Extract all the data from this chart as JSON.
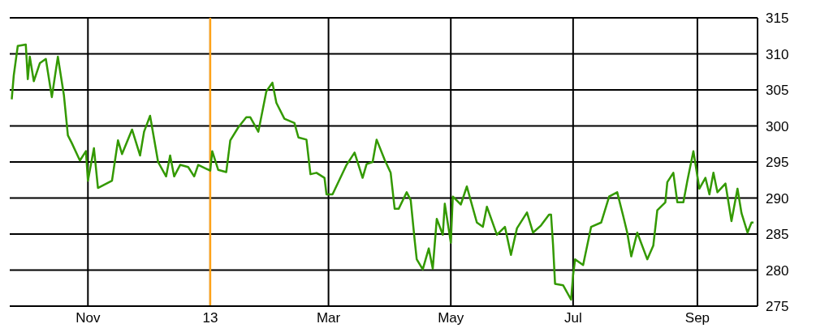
{
  "chart_data": {
    "type": "line",
    "x": [
      "2012-09-24",
      "2012-09-25",
      "2012-09-27",
      "2012-10-01",
      "2012-10-02",
      "2012-10-03",
      "2012-10-05",
      "2012-10-08",
      "2012-10-11",
      "2012-10-14",
      "2012-10-17",
      "2012-10-20",
      "2012-10-22",
      "2012-10-24",
      "2012-10-28",
      "2012-10-31",
      "2012-11-01",
      "2012-11-04",
      "2012-11-06",
      "2012-11-13",
      "2012-11-16",
      "2012-11-18",
      "2012-11-23",
      "2012-11-27",
      "2012-11-29",
      "2012-12-02",
      "2012-12-06",
      "2012-12-10",
      "2012-12-12",
      "2012-12-14",
      "2012-12-17",
      "2012-12-21",
      "2012-12-24",
      "2012-12-26",
      "2013-01-01",
      "2013-01-02",
      "2013-01-05",
      "2013-01-09",
      "2013-01-11",
      "2013-01-15",
      "2013-01-19",
      "2013-01-21",
      "2013-01-25",
      "2013-01-29",
      "2013-02-01",
      "2013-02-03",
      "2013-02-07",
      "2013-02-12",
      "2013-02-14",
      "2013-02-18",
      "2013-02-20",
      "2013-02-23",
      "2013-02-27",
      "2013-02-28",
      "2013-03-03",
      "2013-03-10",
      "2013-03-14",
      "2013-03-18",
      "2013-03-20",
      "2013-03-23",
      "2013-03-25",
      "2013-03-29",
      "2013-04-01",
      "2013-04-03",
      "2013-04-05",
      "2013-04-09",
      "2013-04-11",
      "2013-04-13",
      "2013-04-14",
      "2013-04-17",
      "2013-04-20",
      "2013-04-22",
      "2013-04-24",
      "2013-04-27",
      "2013-04-28",
      "2013-05-01",
      "2013-05-02",
      "2013-05-06",
      "2013-05-09",
      "2013-05-14",
      "2013-05-17",
      "2013-05-19",
      "2013-05-24",
      "2013-05-28",
      "2013-05-31",
      "2013-06-03",
      "2013-06-08",
      "2013-06-11",
      "2013-06-15",
      "2013-06-19",
      "2013-06-20",
      "2013-06-21",
      "2013-06-22",
      "2013-06-26",
      "2013-06-30",
      "2013-07-01",
      "2013-07-02",
      "2013-07-06",
      "2013-07-10",
      "2013-07-15",
      "2013-07-19",
      "2013-07-23",
      "2013-07-26",
      "2013-07-28",
      "2013-07-30",
      "2013-08-02",
      "2013-08-07",
      "2013-08-10",
      "2013-08-12",
      "2013-08-16",
      "2013-08-17",
      "2013-08-20",
      "2013-08-22",
      "2013-08-25",
      "2013-08-27",
      "2013-08-30",
      "2013-09-02",
      "2013-09-05",
      "2013-09-07",
      "2013-09-09",
      "2013-09-11",
      "2013-09-15",
      "2013-09-18",
      "2013-09-21",
      "2013-09-23",
      "2013-09-26",
      "2013-09-28",
      "2013-09-29"
    ],
    "series": [
      {
        "color": "#339900",
        "values": [
          303.7,
          307,
          311.1,
          311.3,
          306.5,
          309.6,
          306.2,
          308.7,
          309.3,
          304,
          309.6,
          304.3,
          298.7,
          297.6,
          295.2,
          296.5,
          292.4,
          296.9,
          291.4,
          292.4,
          298,
          296.1,
          299.5,
          295.9,
          299.2,
          301.4,
          295,
          293,
          295.9,
          293,
          294.6,
          294.3,
          293,
          294.6,
          293.8,
          296.5,
          293.9,
          293.6,
          298,
          299.8,
          301.2,
          301.2,
          299.2,
          304.8,
          306,
          303.2,
          301,
          300.4,
          298.4,
          298.1,
          293.3,
          293.5,
          292.8,
          290.5,
          290.5,
          294.6,
          296.3,
          292.8,
          294.7,
          295,
          298.1,
          295.3,
          293.5,
          288.5,
          288.5,
          290.8,
          289.7,
          284.1,
          281.5,
          280.1,
          283,
          280.2,
          287.1,
          284.9,
          289.2,
          283.8,
          290.2,
          289.1,
          291.6,
          286.6,
          286,
          288.8,
          284.9,
          286,
          282.1,
          285.8,
          288,
          285.2,
          286.2,
          287.7,
          287.7,
          283.5,
          278.1,
          277.9,
          275.9,
          279.3,
          281.5,
          280.7,
          286,
          286.6,
          290.2,
          290.8,
          287.5,
          285.2,
          281.9,
          285.2,
          281.5,
          283.4,
          288.3,
          289.4,
          292.2,
          293.5,
          289.4,
          289.4,
          292.4,
          296.5,
          291.3,
          292.8,
          290.5,
          293.5,
          290.8,
          292,
          286.8,
          291.3,
          287.9,
          285.2,
          286.6,
          286.6
        ]
      }
    ],
    "xlim": [
      "2012-09-23",
      "2013-10-01"
    ],
    "xticks": [
      {
        "value": "2012-11-01",
        "label": "Nov"
      },
      {
        "value": "2013-01-01",
        "label": "13"
      },
      {
        "value": "2013-03-01",
        "label": "Mar"
      },
      {
        "value": "2013-05-01",
        "label": "May"
      },
      {
        "value": "2013-07-01",
        "label": "Jul"
      },
      {
        "value": "2013-09-01",
        "label": "Sep"
      }
    ],
    "ylim": [
      275,
      315
    ],
    "yticks": [
      275,
      280,
      285,
      290,
      295,
      300,
      305,
      310,
      315
    ],
    "ref_lines": [
      {
        "axis": "x",
        "value": "2013-01-01",
        "color": "#ffa31a"
      }
    ],
    "grid": true,
    "marker": "none",
    "line_style": "solid"
  }
}
